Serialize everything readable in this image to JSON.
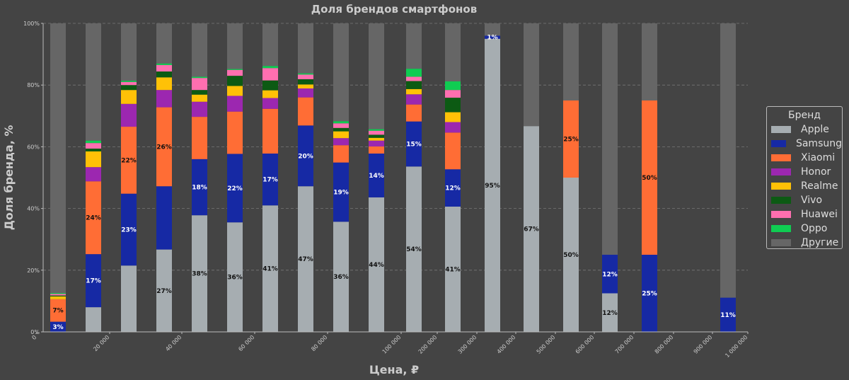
{
  "chart_data": {
    "type": "bar",
    "stacked": true,
    "title": "Доля брендов смартфонов",
    "xlabel": "Цена, ₽",
    "ylabel": "Доля бренда, %",
    "ylim": [
      0,
      100
    ],
    "yticks": [
      "0%",
      "20%",
      "40%",
      "60%",
      "80%",
      "100%"
    ],
    "xticks": [
      "0",
      "20 000",
      "40 000",
      "60 000",
      "80 000",
      "100 000",
      "200 000",
      "300 000",
      "400 000",
      "500 000",
      "600 000",
      "700 000",
      "800 000",
      "900 000",
      "1 000 000"
    ],
    "grid": true,
    "legend_position": "right",
    "legend_title": "Бренд",
    "series": [
      {
        "name": "Apple",
        "color": "#a6adb1",
        "values": [
          0,
          8,
          21.5,
          26.7,
          37.8,
          35.5,
          41,
          47.2,
          35.7,
          43.6,
          53.6,
          40.6,
          95,
          66.7,
          50,
          12.5,
          0,
          0,
          0
        ]
      },
      {
        "name": "Samsung",
        "color": "#1629a4",
        "values": [
          3.3,
          17.2,
          23.3,
          20.5,
          18.2,
          22.2,
          16.8,
          19.7,
          19.2,
          14.2,
          14.6,
          12.1,
          1,
          0,
          0,
          12.5,
          25,
          0,
          11.1
        ]
      },
      {
        "name": "Xiaomi",
        "color": "#ff6d35",
        "values": [
          7.3,
          23.6,
          21.7,
          25.6,
          13.7,
          13.7,
          14.5,
          9.1,
          5.6,
          2.3,
          5.5,
          11.9,
          0,
          0,
          25,
          0,
          50,
          0,
          0
        ]
      },
      {
        "name": "Honor",
        "color": "#9c27b0",
        "values": [
          0,
          4.6,
          7.4,
          5.6,
          4.9,
          5.1,
          3.5,
          2.9,
          2.3,
          1.9,
          3.3,
          3.4,
          0,
          0,
          0,
          0,
          0,
          0,
          0
        ]
      },
      {
        "name": "Realme",
        "color": "#ffc107",
        "values": [
          0.9,
          5.1,
          4.5,
          4.1,
          2.3,
          3.2,
          2.5,
          1.3,
          2.2,
          0.9,
          1.7,
          3.2,
          0,
          0,
          0,
          0,
          0,
          0,
          0
        ]
      },
      {
        "name": "Vivo",
        "color": "#0c5a13",
        "values": [
          0.3,
          0.9,
          1.6,
          1.9,
          1.5,
          3.3,
          3.2,
          1.7,
          1.1,
          1.0,
          2.6,
          4.7,
          0,
          0,
          0,
          0,
          0,
          0,
          0
        ]
      },
      {
        "name": "Huawei",
        "color": "#ff6fb0",
        "values": [
          0.5,
          1.8,
          1.0,
          2.1,
          3.9,
          1.9,
          4.0,
          1.5,
          1.5,
          1.3,
          1.4,
          2.5,
          0,
          0,
          0,
          0,
          0,
          0,
          0
        ]
      },
      {
        "name": "Oppo",
        "color": "#0fcc52",
        "values": [
          0.3,
          0.8,
          0.4,
          0.5,
          0.4,
          0.3,
          0.7,
          0.4,
          0.7,
          0.5,
          2.6,
          2.8,
          0,
          0,
          0,
          0,
          0,
          0,
          0
        ]
      },
      {
        "name": "Другие",
        "color": "#666666",
        "values": [
          87.4,
          38.0,
          18.6,
          13.0,
          17.3,
          14.8,
          13.8,
          16.2,
          31.7,
          34.3,
          14.7,
          18.8,
          4,
          33.3,
          25,
          75,
          25,
          0,
          88.9
        ]
      }
    ],
    "data_labels": [
      {
        "bar": 0,
        "series": "Samsung",
        "text": "3%"
      },
      {
        "bar": 0,
        "series": "Xiaomi",
        "text": "7%"
      },
      {
        "bar": 1,
        "series": "Samsung",
        "text": "17%"
      },
      {
        "bar": 1,
        "series": "Xiaomi",
        "text": "24%"
      },
      {
        "bar": 2,
        "series": "Samsung",
        "text": "23%"
      },
      {
        "bar": 2,
        "series": "Xiaomi",
        "text": "22%"
      },
      {
        "bar": 3,
        "series": "Apple",
        "text": "27%"
      },
      {
        "bar": 3,
        "series": "Xiaomi",
        "text": "26%"
      },
      {
        "bar": 4,
        "series": "Apple",
        "text": "38%"
      },
      {
        "bar": 4,
        "series": "Samsung",
        "text": "18%"
      },
      {
        "bar": 5,
        "series": "Apple",
        "text": "36%"
      },
      {
        "bar": 5,
        "series": "Samsung",
        "text": "22%"
      },
      {
        "bar": 6,
        "series": "Apple",
        "text": "41%"
      },
      {
        "bar": 6,
        "series": "Samsung",
        "text": "17%"
      },
      {
        "bar": 7,
        "series": "Apple",
        "text": "47%"
      },
      {
        "bar": 7,
        "series": "Samsung",
        "text": "20%"
      },
      {
        "bar": 8,
        "series": "Apple",
        "text": "36%"
      },
      {
        "bar": 8,
        "series": "Samsung",
        "text": "19%"
      },
      {
        "bar": 9,
        "series": "Apple",
        "text": "44%"
      },
      {
        "bar": 9,
        "series": "Samsung",
        "text": "14%"
      },
      {
        "bar": 10,
        "series": "Apple",
        "text": "54%"
      },
      {
        "bar": 10,
        "series": "Samsung",
        "text": "15%"
      },
      {
        "bar": 11,
        "series": "Apple",
        "text": "41%"
      },
      {
        "bar": 11,
        "series": "Samsung",
        "text": "12%"
      },
      {
        "bar": 12,
        "series": "Apple",
        "text": "95%"
      },
      {
        "bar": 12,
        "series": "Samsung",
        "text": "1%"
      },
      {
        "bar": 13,
        "series": "Apple",
        "text": "67%"
      },
      {
        "bar": 14,
        "series": "Apple",
        "text": "50%"
      },
      {
        "bar": 14,
        "series": "Xiaomi",
        "text": "25%"
      },
      {
        "bar": 15,
        "series": "Apple",
        "text": "12%"
      },
      {
        "bar": 15,
        "series": "Samsung",
        "text": "12%"
      },
      {
        "bar": 16,
        "series": "Samsung",
        "text": "25%"
      },
      {
        "bar": 16,
        "series": "Xiaomi",
        "text": "50%"
      },
      {
        "bar": 18,
        "series": "Samsung",
        "text": "11%"
      }
    ]
  }
}
